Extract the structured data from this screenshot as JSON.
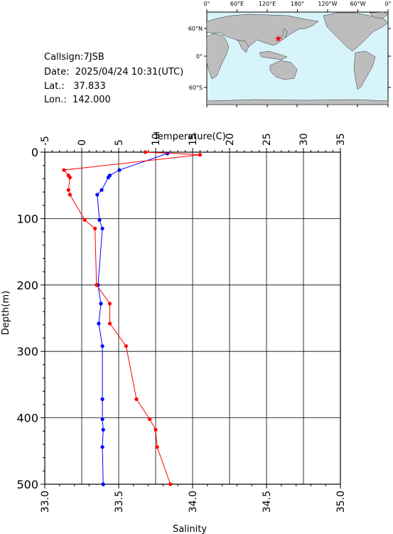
{
  "station": {
    "callsign_label": "Callsign:",
    "callsign": "7JSB",
    "date_label": "Date:",
    "date": "2025/04/24 10:31(UTC)",
    "lat_label": "Lat.:",
    "lat": "37.833",
    "lon_label": "Lon.:",
    "lon": "142.000"
  },
  "map": {
    "top_ticks": [
      "0°",
      "60°E",
      "120°E",
      "180°",
      "120°W",
      "60°W",
      "0°"
    ],
    "lat_ticks": [
      "60°N",
      "0°",
      "60°S"
    ],
    "ocean_color": "#d8f4fb",
    "land_color": "#bdbdbd",
    "marker_color": "#ff0000",
    "marker_icon": "star-icon"
  },
  "chart_data": {
    "type": "line",
    "top_axis_label": "Temperature(C)",
    "bottom_axis_label": "Salinity",
    "left_axis_label": "Depth(m)",
    "temperature_ticks": [
      "-5",
      "0",
      "5",
      "10",
      "15",
      "20",
      "25",
      "30",
      "35"
    ],
    "salinity_ticks": [
      "33.0",
      "33.5",
      "34.0",
      "34.5",
      "35.0"
    ],
    "depth_ticks": [
      "0",
      "100",
      "200",
      "300",
      "400",
      "500"
    ],
    "temperature_range": [
      -5,
      35
    ],
    "salinity_range": [
      33.0,
      35.0
    ],
    "depth_range": [
      0,
      500
    ],
    "grid": true,
    "series": [
      {
        "axis": "temperature",
        "color": "#0000ff",
        "points": [
          {
            "x": 11.6,
            "depth": 2
          },
          {
            "x": 5.1,
            "depth": 27
          },
          {
            "x": 3.8,
            "depth": 35
          },
          {
            "x": 3.6,
            "depth": 38
          },
          {
            "x": 2.7,
            "depth": 57
          },
          {
            "x": 2.1,
            "depth": 64
          },
          {
            "x": 2.4,
            "depth": 102
          },
          {
            "x": 2.8,
            "depth": 115
          },
          {
            "x": 2.2,
            "depth": 200
          },
          {
            "x": 2.6,
            "depth": 228
          },
          {
            "x": 2.3,
            "depth": 258
          },
          {
            "x": 2.8,
            "depth": 292
          },
          {
            "x": 2.8,
            "depth": 372
          },
          {
            "x": 2.8,
            "depth": 402
          },
          {
            "x": 2.9,
            "depth": 418
          },
          {
            "x": 2.8,
            "depth": 444
          },
          {
            "x": 2.9,
            "depth": 500
          }
        ]
      },
      {
        "axis": "salinity",
        "color": "#ff0000",
        "points": [
          {
            "x": 33.68,
            "depth": 0
          },
          {
            "x": 34.05,
            "depth": 4
          },
          {
            "x": 33.13,
            "depth": 27
          },
          {
            "x": 33.16,
            "depth": 35
          },
          {
            "x": 33.17,
            "depth": 38
          },
          {
            "x": 33.16,
            "depth": 57
          },
          {
            "x": 33.17,
            "depth": 64
          },
          {
            "x": 33.27,
            "depth": 102
          },
          {
            "x": 33.34,
            "depth": 115
          },
          {
            "x": 33.35,
            "depth": 200
          },
          {
            "x": 33.44,
            "depth": 228
          },
          {
            "x": 33.44,
            "depth": 258
          },
          {
            "x": 33.55,
            "depth": 292
          },
          {
            "x": 33.62,
            "depth": 372
          },
          {
            "x": 33.71,
            "depth": 402
          },
          {
            "x": 33.75,
            "depth": 418
          },
          {
            "x": 33.76,
            "depth": 444
          },
          {
            "x": 33.85,
            "depth": 500
          }
        ]
      }
    ]
  }
}
